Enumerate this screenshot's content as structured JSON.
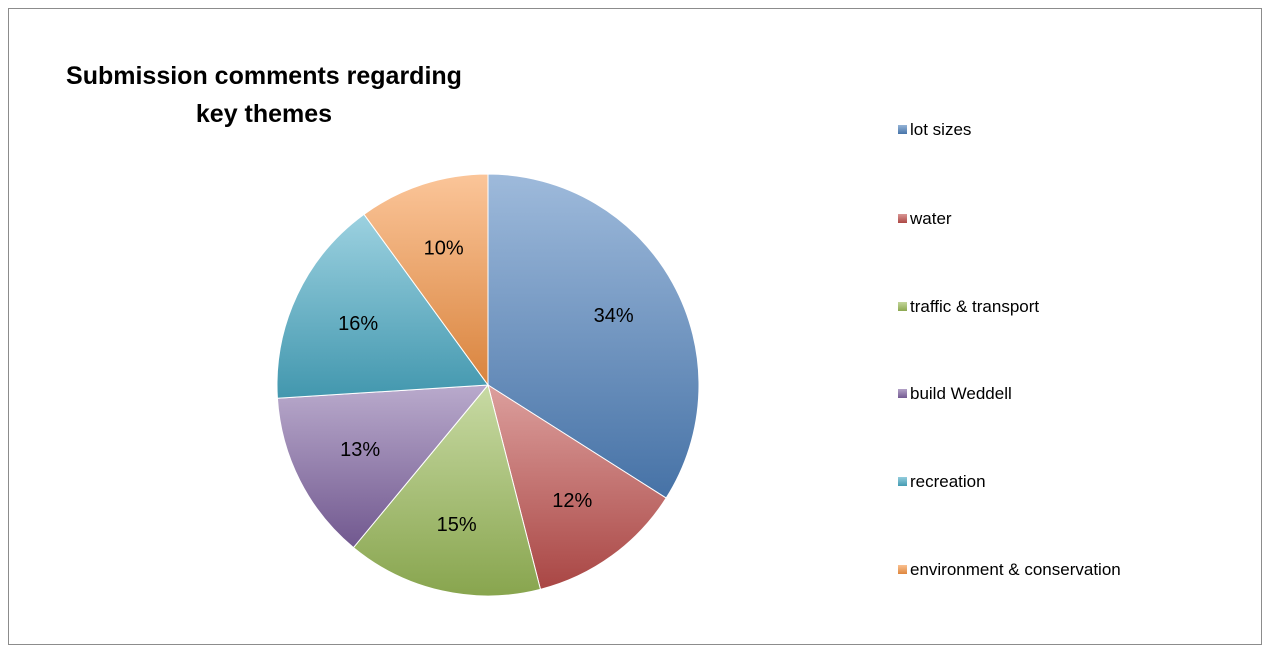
{
  "chart_data": {
    "type": "pie",
    "title": "Submission comments regarding key themes",
    "title_lines": [
      "Submission comments regarding",
      "key themes"
    ],
    "categories": [
      "lot sizes",
      "water",
      "traffic & transport",
      "build Weddell",
      "recreation",
      "environment & conservation"
    ],
    "values": [
      34,
      12,
      15,
      13,
      16,
      10
    ],
    "value_labels": [
      "34%",
      "12%",
      "15%",
      "13%",
      "16%",
      "10%"
    ],
    "colors": [
      "#4f81bd",
      "#c0504d",
      "#9bbb59",
      "#8064a2",
      "#4bacc6",
      "#f79646"
    ],
    "legend_position": "right"
  }
}
